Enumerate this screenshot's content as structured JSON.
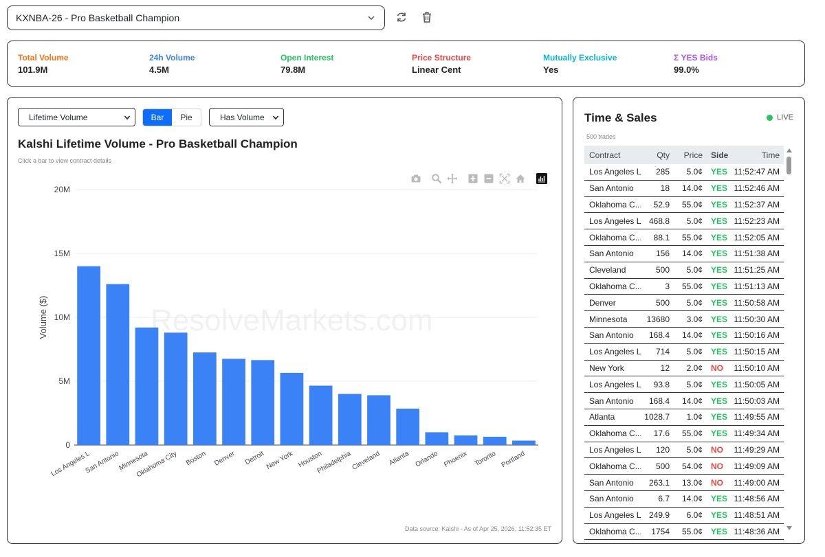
{
  "market": {
    "selected": "KXNBA-26 - Pro Basketball Champion"
  },
  "icons": {
    "refresh": "refresh-icon",
    "delete": "trash-icon",
    "dropdown": "chevron-down-icon"
  },
  "stats": [
    {
      "label": "Total Volume",
      "value": "101.9M",
      "color": "#f97316"
    },
    {
      "label": "24h Volume",
      "value": "4.5M",
      "color": "#3b82f6"
    },
    {
      "label": "Open Interest",
      "value": "79.8M",
      "color": "#22c55e"
    },
    {
      "label": "Price Structure",
      "value": "Linear Cent",
      "color": "#ef4444"
    },
    {
      "label": "Mutually Exclusive",
      "value": "Yes",
      "color": "#06b6d4"
    },
    {
      "label": "Σ YES Bids",
      "value": "99.0%",
      "color": "#a855f7"
    }
  ],
  "controls": {
    "metric": "Lifetime Volume",
    "bar_label": "Bar",
    "pie_label": "Pie",
    "filter": "Has Volume"
  },
  "chart": {
    "hint": "Click a bar to view contract details",
    "watermark": "ResolveMarkets.com",
    "source": "Data source: Kalshi - As of Apr 25, 2026, 11:52:35 ET",
    "modebar_icons": [
      "camera-icon",
      "zoom-icon",
      "pan-icon",
      "zoom-in-icon",
      "zoom-out-icon",
      "autoscale-icon",
      "reset-home-icon",
      "chart-logo-icon"
    ]
  },
  "chart_data": {
    "type": "bar",
    "title": "Kalshi Lifetime Volume - Pro Basketball Champion",
    "ylabel": "Volume ($)",
    "xlabel": "",
    "categories": [
      "Los Angeles L",
      "San Antonio",
      "Minnesota",
      "Oklahoma City",
      "Boston",
      "Denver",
      "Detroit",
      "New York",
      "Houston",
      "Philadelphia",
      "Cleveland",
      "Atlanta",
      "Orlando",
      "Phoenix",
      "Toronto",
      "Portland"
    ],
    "values": [
      14000000,
      12600000,
      9200000,
      8800000,
      7250000,
      6750000,
      6650000,
      5650000,
      4650000,
      4000000,
      3900000,
      2850000,
      1000000,
      750000,
      650000,
      350000
    ],
    "ylim": [
      0,
      20000000
    ],
    "yticks": [
      0,
      5000000,
      10000000,
      15000000,
      20000000
    ],
    "ytick_labels": [
      "0",
      "5M",
      "10M",
      "15M",
      "20M"
    ],
    "bar_color": "#3b82f6",
    "grid": true
  },
  "time_sales": {
    "title": "Time & Sales",
    "live_label": "LIVE",
    "count_label": "500 trades",
    "columns": [
      "Contract",
      "Qty",
      "Price",
      "Side",
      "Time"
    ],
    "rows": [
      {
        "contract": "Los Angeles L",
        "qty": "285",
        "price": "5.0¢",
        "side": "YES",
        "time": "11:52:47 AM"
      },
      {
        "contract": "San Antonio",
        "qty": "18",
        "price": "14.0¢",
        "side": "YES",
        "time": "11:52:46 AM"
      },
      {
        "contract": "Oklahoma C...",
        "qty": "52.9",
        "price": "55.0¢",
        "side": "YES",
        "time": "11:52:37 AM"
      },
      {
        "contract": "Los Angeles L",
        "qty": "468.8",
        "price": "5.0¢",
        "side": "YES",
        "time": "11:52:23 AM"
      },
      {
        "contract": "Oklahoma C...",
        "qty": "88.1",
        "price": "55.0¢",
        "side": "YES",
        "time": "11:52:05 AM"
      },
      {
        "contract": "San Antonio",
        "qty": "156",
        "price": "14.0¢",
        "side": "YES",
        "time": "11:51:38 AM"
      },
      {
        "contract": "Cleveland",
        "qty": "500",
        "price": "5.0¢",
        "side": "YES",
        "time": "11:51:25 AM"
      },
      {
        "contract": "Oklahoma C...",
        "qty": "3",
        "price": "55.0¢",
        "side": "YES",
        "time": "11:51:13 AM"
      },
      {
        "contract": "Denver",
        "qty": "500",
        "price": "5.0¢",
        "side": "YES",
        "time": "11:50:58 AM"
      },
      {
        "contract": "Minnesota",
        "qty": "13680",
        "price": "3.0¢",
        "side": "YES",
        "time": "11:50:30 AM"
      },
      {
        "contract": "San Antonio",
        "qty": "168.4",
        "price": "14.0¢",
        "side": "YES",
        "time": "11:50:16 AM"
      },
      {
        "contract": "Los Angeles L",
        "qty": "714",
        "price": "5.0¢",
        "side": "YES",
        "time": "11:50:15 AM"
      },
      {
        "contract": "New York",
        "qty": "12",
        "price": "2.0¢",
        "side": "NO",
        "time": "11:50:10 AM"
      },
      {
        "contract": "Los Angeles L",
        "qty": "93.8",
        "price": "5.0¢",
        "side": "YES",
        "time": "11:50:05 AM"
      },
      {
        "contract": "San Antonio",
        "qty": "168.4",
        "price": "14.0¢",
        "side": "YES",
        "time": "11:50:03 AM"
      },
      {
        "contract": "Atlanta",
        "qty": "1028.7",
        "price": "1.0¢",
        "side": "YES",
        "time": "11:49:55 AM"
      },
      {
        "contract": "Oklahoma C...",
        "qty": "17.6",
        "price": "55.0¢",
        "side": "YES",
        "time": "11:49:34 AM"
      },
      {
        "contract": "Los Angeles L",
        "qty": "120",
        "price": "5.0¢",
        "side": "NO",
        "time": "11:49:29 AM"
      },
      {
        "contract": "Oklahoma C...",
        "qty": "500",
        "price": "54.0¢",
        "side": "NO",
        "time": "11:49:09 AM"
      },
      {
        "contract": "San Antonio",
        "qty": "263.1",
        "price": "13.0¢",
        "side": "NO",
        "time": "11:49:00 AM"
      },
      {
        "contract": "San Antonio",
        "qty": "6.7",
        "price": "14.0¢",
        "side": "YES",
        "time": "11:48:56 AM"
      },
      {
        "contract": "Los Angeles L",
        "qty": "249.9",
        "price": "6.0¢",
        "side": "YES",
        "time": "11:48:51 AM"
      },
      {
        "contract": "Oklahoma C...",
        "qty": "1754",
        "price": "55.0¢",
        "side": "YES",
        "time": "11:48:36 AM"
      }
    ],
    "colors": {
      "yes": "#22c55e",
      "no": "#ef4444"
    }
  }
}
